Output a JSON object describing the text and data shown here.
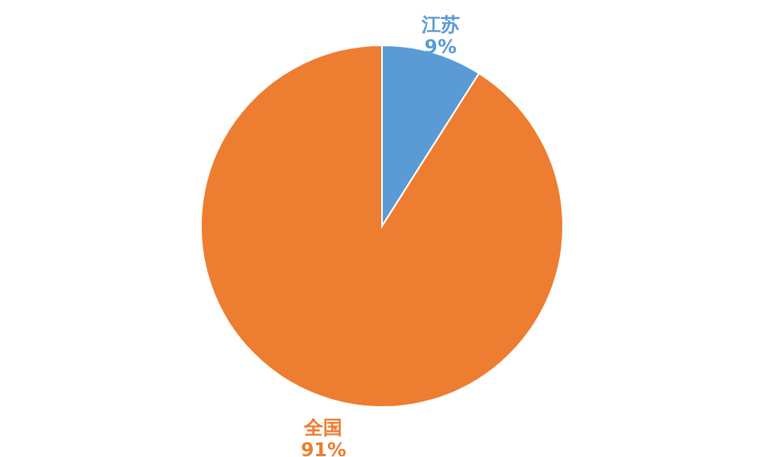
{
  "chart_data": {
    "type": "pie",
    "categories": [
      "江苏",
      "全国"
    ],
    "values": [
      9,
      91
    ],
    "value_labels": [
      "9%",
      "91%"
    ],
    "colors": [
      "#5b9bd5",
      "#ed7d31"
    ],
    "legend": false
  }
}
